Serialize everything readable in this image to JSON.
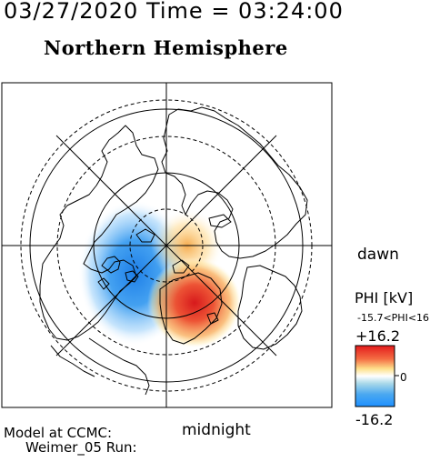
{
  "header": {
    "timestamp": "03/27/2020 Time = 03:24:00",
    "hemisphere": "Northern Hemisphere"
  },
  "map": {
    "side_label_right": "dawn",
    "bottom_label": "midnight"
  },
  "colorbar": {
    "title": "PHI [kV]",
    "range_text": "-15.7<PHI<16",
    "max_label": "+16.2",
    "zero_label": "0",
    "min_label": "-16.2",
    "min_color": "#1e90ff",
    "mid_color": "#ffffff",
    "max_color": "#e31a1c",
    "min_value": -16.2,
    "max_value": 16.2
  },
  "footer": {
    "model_line": "Model at CCMC:",
    "run_line": "Weimer_05 Run:"
  },
  "potential_cells": [
    {
      "kind": "negative",
      "peak_kv": -15.7
    },
    {
      "kind": "positive",
      "peak_kv": 16.0
    }
  ]
}
